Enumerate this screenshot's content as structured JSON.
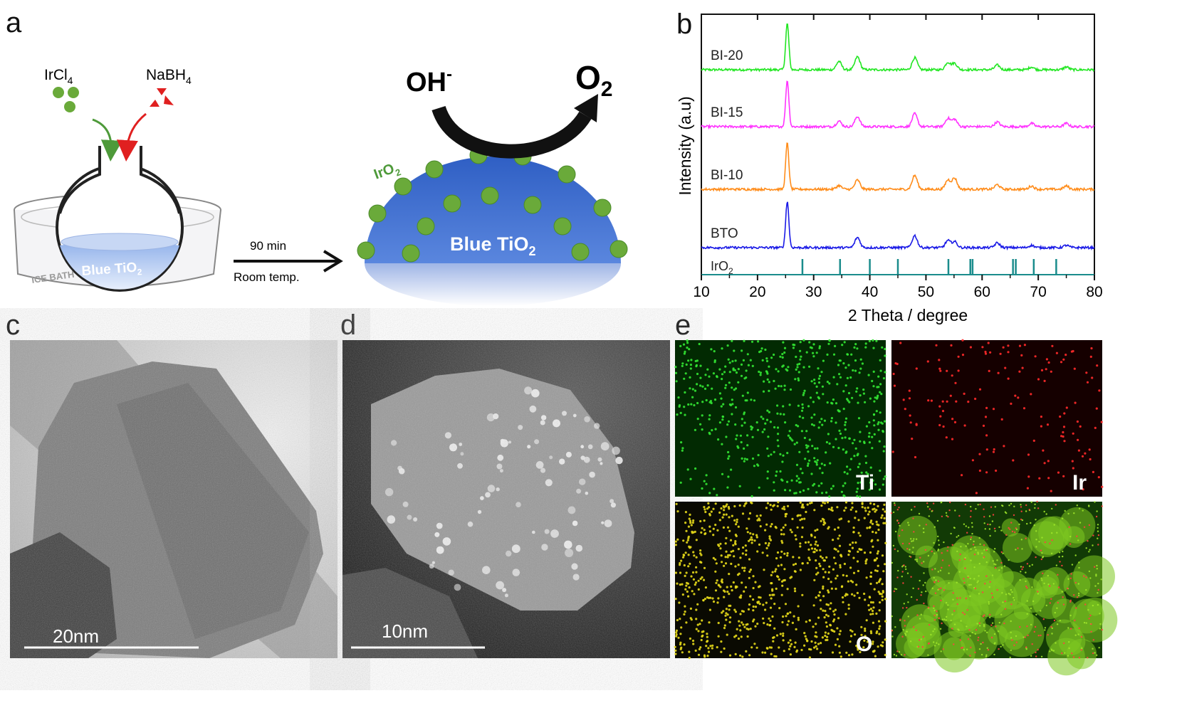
{
  "panels": {
    "a": "a",
    "b": "b",
    "c": "c",
    "d": "d",
    "e": "e"
  },
  "schematic": {
    "reagent1": "IrCl",
    "reagent1_sub": "4",
    "reagent2": "NaBH",
    "reagent2_sub": "4",
    "bath_label": "ICE BATH",
    "flask_content": "Blue TiO",
    "flask_content_sub": "2",
    "time": "90 min",
    "condition": "Room temp.",
    "reactant": "OH",
    "reactant_sup": "-",
    "product": "O",
    "product_sub": "2",
    "particle_label": "IrO",
    "particle_label_sub": "2",
    "support_label": "Blue TiO",
    "support_label_sub": "2",
    "colors": {
      "particle": "#6aaa3a",
      "support": "#3f6fc9",
      "water": "#b3c8ee",
      "arrow_green": "#4e9a3a",
      "arrow_red": "#e02020"
    }
  },
  "chart_data": {
    "type": "line",
    "xlabel": "2 Theta / degree",
    "ylabel": "Intensity (a.u)",
    "xlim": [
      10,
      80
    ],
    "x_ticks": [
      "10",
      "20",
      "30",
      "40",
      "50",
      "60",
      "70",
      "80"
    ],
    "series": [
      {
        "name": "BI-20",
        "color": "#22e622",
        "peaks": [
          [
            25.3,
            1.0
          ],
          [
            34.5,
            0.18
          ],
          [
            37.8,
            0.28
          ],
          [
            48.0,
            0.26
          ],
          [
            53.9,
            0.16
          ],
          [
            55.1,
            0.14
          ],
          [
            62.7,
            0.1
          ],
          [
            68.8,
            0.06
          ],
          [
            75.0,
            0.06
          ]
        ]
      },
      {
        "name": "BI-15",
        "color": "#ff33ff",
        "peaks": [
          [
            25.3,
            1.0
          ],
          [
            34.5,
            0.12
          ],
          [
            37.8,
            0.22
          ],
          [
            48.0,
            0.28
          ],
          [
            53.9,
            0.18
          ],
          [
            55.1,
            0.16
          ],
          [
            62.7,
            0.1
          ],
          [
            68.8,
            0.07
          ],
          [
            75.0,
            0.07
          ]
        ]
      },
      {
        "name": "BI-10",
        "color": "#ff8c1a",
        "peaks": [
          [
            25.3,
            1.0
          ],
          [
            34.5,
            0.08
          ],
          [
            37.8,
            0.2
          ],
          [
            48.0,
            0.3
          ],
          [
            53.9,
            0.2
          ],
          [
            55.1,
            0.24
          ],
          [
            62.7,
            0.1
          ],
          [
            68.8,
            0.07
          ],
          [
            75.0,
            0.07
          ]
        ]
      },
      {
        "name": "BTO",
        "color": "#1a1ae6",
        "peaks": [
          [
            25.3,
            1.0
          ],
          [
            37.8,
            0.22
          ],
          [
            48.0,
            0.26
          ],
          [
            53.9,
            0.15
          ],
          [
            55.1,
            0.13
          ],
          [
            62.7,
            0.1
          ],
          [
            68.8,
            0.05
          ],
          [
            75.0,
            0.05
          ]
        ]
      }
    ],
    "reference": {
      "name": "IrO",
      "name_sub": "2",
      "color": "#1a8c8c",
      "positions": [
        28.0,
        34.7,
        40.0,
        45.0,
        54.0,
        57.9,
        58.3,
        65.5,
        66.0,
        69.2,
        73.2
      ]
    }
  },
  "micrographs": {
    "c_scale": "20nm",
    "d_scale": "10nm",
    "e_maps": [
      {
        "label": "Ti",
        "color": "#33e633",
        "bg": "#022a02"
      },
      {
        "label": "Ir",
        "color": "#ff2a2a",
        "bg": "#150000"
      },
      {
        "label": "O",
        "color": "#e6d91a",
        "bg": "#0a0a02"
      },
      {
        "label": "",
        "color": "#9ee62a",
        "bg": "#123a06"
      }
    ]
  }
}
